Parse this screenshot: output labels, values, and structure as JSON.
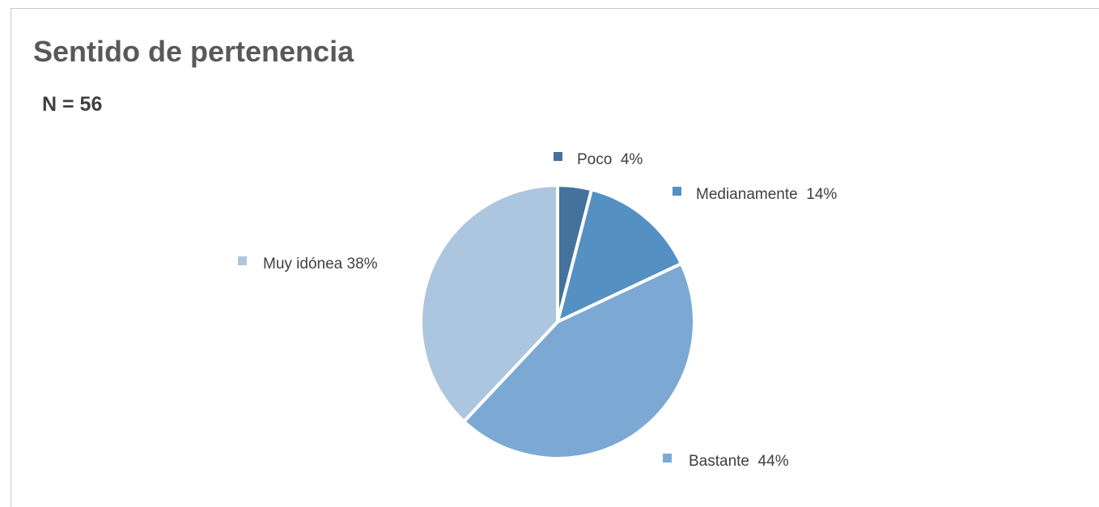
{
  "chart_data": {
    "type": "pie",
    "title": "Sentido de pertenencia",
    "subtitle": "N = 56",
    "slices": [
      {
        "label": "Poco  4%",
        "value": 4,
        "color": "#44729d"
      },
      {
        "label": "Medianamente  14%",
        "value": 14,
        "color": "#5590c2"
      },
      {
        "label": "Bastante  44%",
        "value": 44,
        "color": "#7ba9d3"
      },
      {
        "label": "Muy idónea 38%",
        "value": 38,
        "color": "#adc6e0"
      }
    ],
    "start_angle_deg": 0,
    "direction": "clockwise",
    "legend": "data-labels-with-markers"
  }
}
